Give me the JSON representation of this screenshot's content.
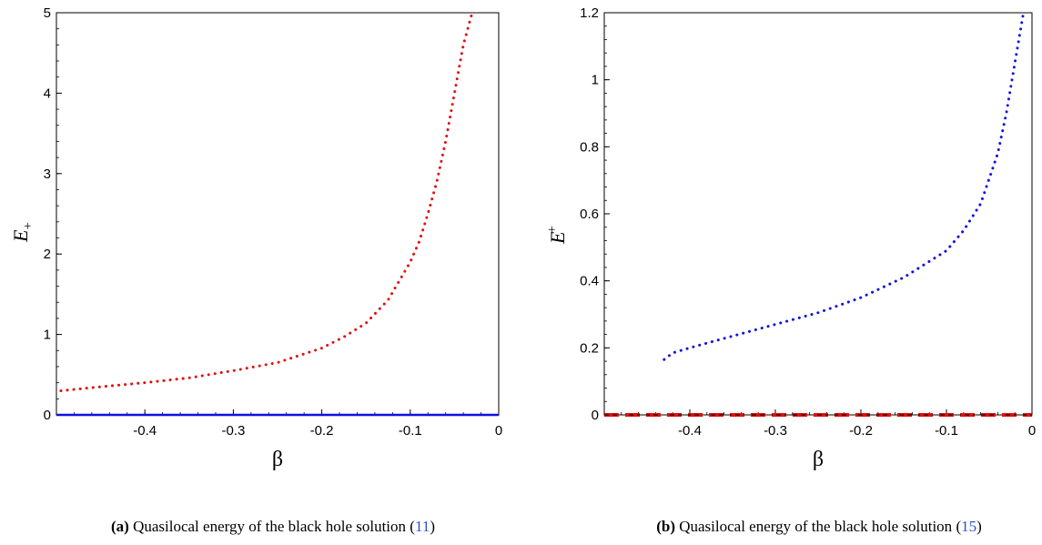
{
  "chart_data": [
    {
      "type": "line",
      "panel_label": "(a)",
      "caption": "Quasilocal energy of the black hole solution",
      "caption_ref": "11",
      "caption_paren_open": "(",
      "caption_paren_close": ")",
      "xlabel": "β",
      "ylabel_main": "E",
      "ylabel_sub": "+",
      "xlim": [
        -0.5,
        0
      ],
      "ylim": [
        0,
        5
      ],
      "xticks": [
        -0.4,
        -0.3,
        -0.2,
        -0.1,
        0
      ],
      "xtick_labels": [
        "-0.4",
        "-0.3",
        "-0.2",
        "-0.1",
        "0"
      ],
      "yticks": [
        0,
        1,
        2,
        3,
        4,
        5
      ],
      "ytick_labels": [
        "0",
        "1",
        "2",
        "3",
        "4",
        "5"
      ],
      "series": [
        {
          "style": "dotted",
          "color": "#e01010",
          "x": [
            -0.495,
            -0.45,
            -0.4,
            -0.35,
            -0.3,
            -0.25,
            -0.2,
            -0.175,
            -0.15,
            -0.125,
            -0.1,
            -0.09,
            -0.08,
            -0.07,
            -0.06,
            -0.05,
            -0.04,
            -0.03
          ],
          "y": [
            0.3,
            0.35,
            0.4,
            0.46,
            0.55,
            0.65,
            0.83,
            0.97,
            1.14,
            1.43,
            1.9,
            2.15,
            2.5,
            2.9,
            3.4,
            4.0,
            4.6,
            5.0
          ]
        },
        {
          "style": "solid",
          "color": "#1010e0",
          "x": [
            -0.5,
            0
          ],
          "y": [
            0,
            0
          ]
        }
      ]
    },
    {
      "type": "line",
      "panel_label": "(b)",
      "caption": "Quasilocal energy of the black hole solution",
      "caption_ref": "15",
      "caption_paren_open": "(",
      "caption_paren_close": ")",
      "xlabel": "β",
      "ylabel_main": "E",
      "ylabel_sub": "+",
      "xlim": [
        -0.5,
        0
      ],
      "ylim": [
        0,
        1.2
      ],
      "xticks": [
        -0.4,
        -0.3,
        -0.2,
        -0.1,
        0
      ],
      "xtick_labels": [
        "-0.4",
        "-0.3",
        "-0.2",
        "-0.1",
        "0"
      ],
      "yticks": [
        0,
        0.2,
        0.4,
        0.6,
        0.8,
        1,
        1.2
      ],
      "ytick_labels": [
        "0",
        "0.2",
        "0.4",
        "0.6",
        "0.8",
        "1",
        "1.2"
      ],
      "series": [
        {
          "style": "dotted",
          "color": "#1010e0",
          "x": [
            -0.43,
            -0.42,
            -0.4,
            -0.35,
            -0.3,
            -0.25,
            -0.2,
            -0.15,
            -0.1,
            -0.08,
            -0.06,
            -0.04,
            -0.03,
            -0.02,
            -0.01
          ],
          "y": [
            0.165,
            0.185,
            0.2,
            0.235,
            0.27,
            0.305,
            0.35,
            0.41,
            0.49,
            0.55,
            0.63,
            0.78,
            0.9,
            1.05,
            1.2
          ]
        },
        {
          "style": "dashed",
          "color": "#e01010",
          "x": [
            -0.5,
            0
          ],
          "y": [
            0,
            0
          ]
        },
        {
          "style": "dashed-thin",
          "color": "#000000",
          "x": [
            -0.5,
            0
          ],
          "y": [
            0,
            0
          ]
        }
      ]
    }
  ]
}
